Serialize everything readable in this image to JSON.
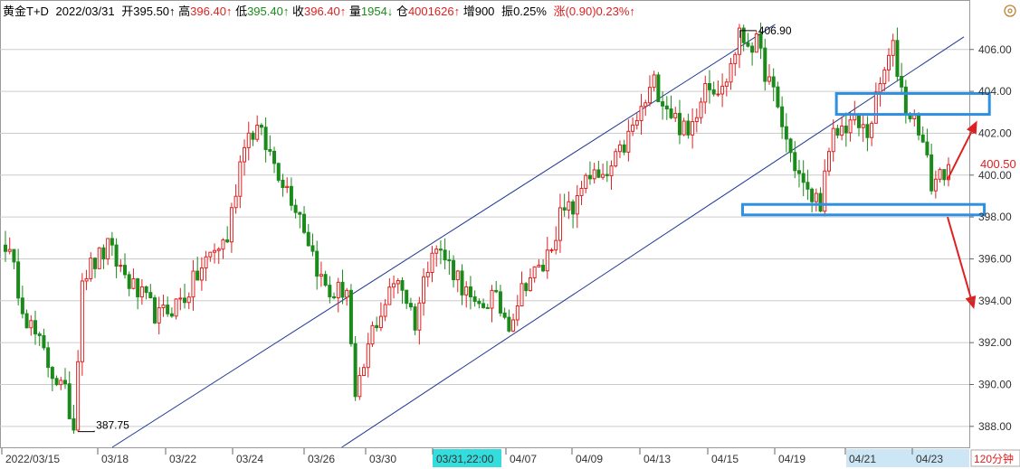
{
  "header": {
    "symbol": "黄金T+D",
    "date": "2022/03/31",
    "open_label": "开",
    "open_value": "395.50↑",
    "high_label": "高",
    "high_value": "396.40↑",
    "low_label": "低",
    "low_value": "395.40↑",
    "close_label": "收",
    "close_value": "396.40↑",
    "volume_label": "量",
    "volume_value": "1954↓",
    "oi_label": "仓",
    "oi_value": "4001626↑",
    "inc_label": "增",
    "inc_value": "900",
    "amp_label": "振",
    "amp_value": "0.25%",
    "chg_label": "涨",
    "chg_value": "(0.90)0.23%↑"
  },
  "colors": {
    "up": "#e02020",
    "down": "#1a8a1a",
    "channel": "#1f3a93",
    "box": "#2f8fe0",
    "arrow": "#e02020",
    "grid": "#cccccc",
    "cursor_bg": "#33dddd",
    "period_bg": "#66ccff"
  },
  "chart_data": {
    "type": "candlestick",
    "ylim": [
      387.0,
      407.5
    ],
    "yticks": [
      "406.00",
      "404.00",
      "402.00",
      "400.00",
      "398.00",
      "396.00",
      "394.00",
      "392.00",
      "390.00",
      "388.00"
    ],
    "x_dates": [
      "2022/03/15",
      "03/18",
      "03/22",
      "03/24",
      "03/26",
      "03/30",
      "03/31,22:00",
      "04/07",
      "04/09",
      "04/13",
      "04/15",
      "04/19",
      "04/21",
      "04/23"
    ],
    "period": "120分钟",
    "last_price": "400.50",
    "low_annotation": "387.75",
    "high_annotation": "406.90",
    "extremes": {
      "low": 387.75,
      "high": 406.9
    },
    "anchors": [
      {
        "i": 0,
        "p": 396.8
      },
      {
        "i": 5,
        "p": 393.2
      },
      {
        "i": 10,
        "p": 391.0
      },
      {
        "i": 14,
        "p": 389.5
      },
      {
        "i": 16,
        "p": 388.0
      },
      {
        "i": 18,
        "p": 395.2
      },
      {
        "i": 24,
        "p": 396.5
      },
      {
        "i": 30,
        "p": 394.6
      },
      {
        "i": 36,
        "p": 393.2
      },
      {
        "i": 42,
        "p": 394.2
      },
      {
        "i": 48,
        "p": 396.2
      },
      {
        "i": 52,
        "p": 397.0
      },
      {
        "i": 56,
        "p": 401.8
      },
      {
        "i": 59,
        "p": 402.2
      },
      {
        "i": 64,
        "p": 400.2
      },
      {
        "i": 69,
        "p": 398.2
      },
      {
        "i": 74,
        "p": 395.0
      },
      {
        "i": 76,
        "p": 394.3
      },
      {
        "i": 80,
        "p": 394.6
      },
      {
        "i": 82,
        "p": 389.0
      },
      {
        "i": 86,
        "p": 392.6
      },
      {
        "i": 92,
        "p": 395.2
      },
      {
        "i": 96,
        "p": 393.0
      },
      {
        "i": 100,
        "p": 396.8
      },
      {
        "i": 106,
        "p": 395.2
      },
      {
        "i": 110,
        "p": 393.5
      },
      {
        "i": 114,
        "p": 394.2
      },
      {
        "i": 118,
        "p": 393.0
      },
      {
        "i": 122,
        "p": 395.0
      },
      {
        "i": 126,
        "p": 395.6
      },
      {
        "i": 130,
        "p": 398.0
      },
      {
        "i": 134,
        "p": 398.6
      },
      {
        "i": 136,
        "p": 400.2
      },
      {
        "i": 140,
        "p": 399.6
      },
      {
        "i": 144,
        "p": 401.0
      },
      {
        "i": 148,
        "p": 402.6
      },
      {
        "i": 152,
        "p": 404.4
      },
      {
        "i": 156,
        "p": 403.0
      },
      {
        "i": 160,
        "p": 401.8
      },
      {
        "i": 164,
        "p": 404.6
      },
      {
        "i": 168,
        "p": 404.0
      },
      {
        "i": 172,
        "p": 406.6
      },
      {
        "i": 176,
        "p": 406.2
      },
      {
        "i": 180,
        "p": 403.8
      },
      {
        "i": 184,
        "p": 401.0
      },
      {
        "i": 188,
        "p": 399.0
      },
      {
        "i": 191,
        "p": 398.8
      },
      {
        "i": 194,
        "p": 401.8
      },
      {
        "i": 198,
        "p": 402.6
      },
      {
        "i": 202,
        "p": 402.0
      },
      {
        "i": 206,
        "p": 405.0
      },
      {
        "i": 208,
        "p": 406.0
      },
      {
        "i": 211,
        "p": 403.2
      },
      {
        "i": 214,
        "p": 402.4
      },
      {
        "i": 217,
        "p": 399.6
      },
      {
        "i": 221,
        "p": 400.5
      }
    ],
    "channel_lines": [
      {
        "x1": 0.11,
        "p1": 387.0,
        "x2": 0.76,
        "p2": 407.2
      },
      {
        "x1": 0.335,
        "p1": 387.0,
        "x2": 0.945,
        "p2": 406.6
      },
      {
        "x1": 0.555,
        "p1": 392.9,
        "x2": 0.595,
        "p2": 405.6
      }
    ],
    "boxes": [
      {
        "x1": 0.82,
        "p1": 403.9,
        "x2": 0.97,
        "p2": 402.9
      },
      {
        "x1": 0.728,
        "p1": 398.6,
        "x2": 0.965,
        "p2": 398.1
      }
    ],
    "arrows": [
      {
        "xf": 0.929,
        "pf": 399.8,
        "xt": 0.958,
        "pt": 402.6
      },
      {
        "xf": 0.929,
        "pf": 398.0,
        "xt": 0.955,
        "pt": 393.6
      }
    ]
  }
}
